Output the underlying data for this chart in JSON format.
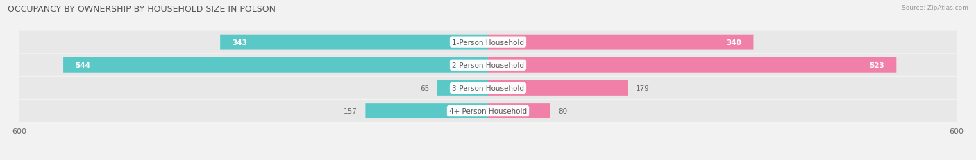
{
  "title": "OCCUPANCY BY OWNERSHIP BY HOUSEHOLD SIZE IN POLSON",
  "source": "Source: ZipAtlas.com",
  "categories": [
    "1-Person Household",
    "2-Person Household",
    "3-Person Household",
    "4+ Person Household"
  ],
  "owner_values": [
    343,
    544,
    65,
    157
  ],
  "renter_values": [
    340,
    523,
    179,
    80
  ],
  "owner_color": "#5bc8c8",
  "renter_color": "#f080a8",
  "background_color": "#f2f2f2",
  "row_bg_color": "#e8e8e8",
  "x_max": 600,
  "title_fontsize": 9,
  "label_fontsize": 7.5,
  "tick_fontsize": 8
}
